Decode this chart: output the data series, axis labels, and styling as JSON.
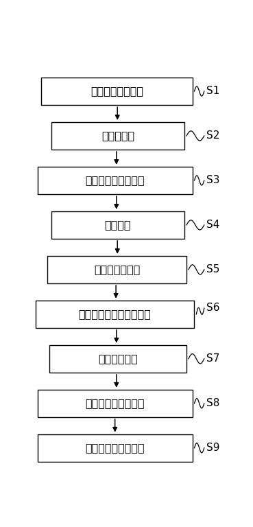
{
  "steps": [
    {
      "label": "实际特征数据截取",
      "step_id": "S1"
    },
    {
      "label": "热强度实验",
      "step_id": "S2"
    },
    {
      "label": "热强度计算模型构建",
      "step_id": "S3"
    },
    {
      "label": "数据对比",
      "step_id": "S4"
    },
    {
      "label": "热强度二次实验",
      "step_id": "S5"
    },
    {
      "label": "热强度计算模型二次构建",
      "step_id": "S6"
    },
    {
      "label": "数据二次对比",
      "step_id": "S7"
    },
    {
      "label": "应变最终加权值计算",
      "step_id": "S8"
    },
    {
      "label": "位移最终加权值计算",
      "step_id": "S9"
    }
  ],
  "box_color": "#ffffff",
  "box_edge_color": "#000000",
  "arrow_color": "#000000",
  "text_color": "#000000",
  "background_color": "#ffffff",
  "font_size": 11.5,
  "step_font_size": 11,
  "fig_width": 3.69,
  "fig_height": 7.68,
  "dpi": 100
}
